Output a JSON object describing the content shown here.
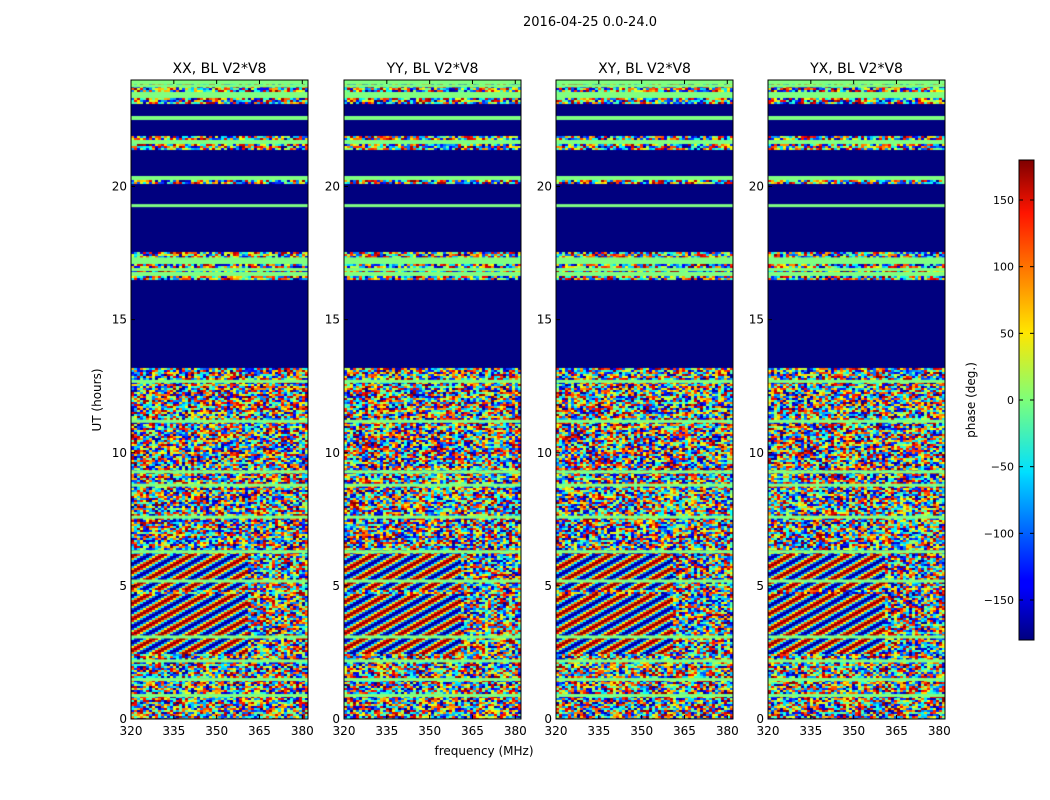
{
  "figure": {
    "suptitle": "2016-04-25 0.0-24.0"
  },
  "chart_data": {
    "type": "heatmap",
    "xlabel": "frequency (MHz)",
    "ylabel": "UT (hours)",
    "xlim": [
      320,
      382
    ],
    "ylim": [
      0,
      24
    ],
    "x_ticks": [
      320,
      335,
      350,
      365,
      380
    ],
    "y_ticks": [
      0,
      5,
      10,
      15,
      20
    ],
    "panels": [
      {
        "title": "XX, BL V2*V8"
      },
      {
        "title": "YY, BL V2*V8"
      },
      {
        "title": "XY, BL V2*V8"
      },
      {
        "title": "YX, BL V2*V8"
      }
    ],
    "colorbar": {
      "label": "phase (deg.)",
      "range": [
        -180,
        180
      ],
      "ticks": [
        -150,
        -100,
        -50,
        0,
        50,
        100,
        150
      ],
      "tick_labels": [
        "−150",
        "−100",
        "−50",
        "0",
        "50",
        "100",
        "150"
      ]
    },
    "flagged_ut_ranges_hours": [
      [
        13.2,
        16.5
      ],
      [
        17.6,
        20.1
      ],
      [
        20.4,
        21.4
      ],
      [
        21.9,
        22.5
      ],
      [
        22.7,
        23.1
      ]
    ],
    "flag_lines_ut_hours": [
      0.9,
      1.5,
      2.2,
      3.1,
      5.2,
      6.3,
      7.6,
      8.8,
      9.3,
      11.2,
      12.7,
      16.9,
      17.3,
      19.3,
      23.4,
      23.8
    ],
    "fringe_ut_ranges_hours": [
      [
        2.5,
        4.7
      ],
      [
        4.9,
        6.2
      ]
    ],
    "fringe_freq_range_mhz": [
      320,
      360
    ]
  }
}
